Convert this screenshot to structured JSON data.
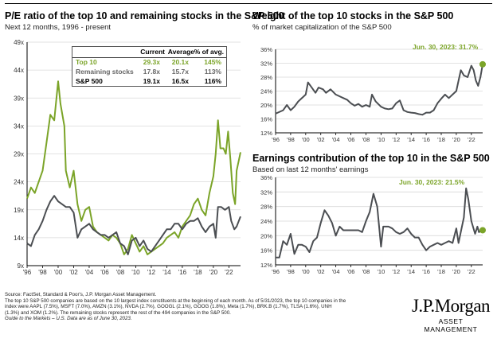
{
  "colors": {
    "top10": "#7ba428",
    "remaining": "#4b4e52",
    "grid": "#d9d9d9",
    "highlight": "#7ba428"
  },
  "left": {
    "title": "P/E ratio of the top 10 and remaining stocks in the S&P 500",
    "subtitle": "Next 12 months, 1996 - present",
    "table": {
      "headers": [
        "Current",
        "Average",
        "% of avg."
      ],
      "rows": [
        {
          "label": "Top 10",
          "current": "29.3x",
          "average": "20.1x",
          "pct": "145%"
        },
        {
          "label": "Remaining stocks",
          "current": "17.8x",
          "average": "15.7x",
          "pct": "113%"
        },
        {
          "label": "S&P 500",
          "current": "19.1x",
          "average": "16.5x",
          "pct": "116%"
        }
      ]
    }
  },
  "top_right": {
    "title": "Weight of the top 10 stocks in the S&P 500",
    "subtitle": "% of market capitalization of the S&P 500",
    "annotation": "Jun. 30, 2023: 31.7%"
  },
  "bottom_right": {
    "title": "Earnings contribution of the top 10 in the S&P 500",
    "subtitle": "Based on last 12 months' earnings",
    "annotation": "Jun. 30, 2023: 21.5%"
  },
  "footer": {
    "source": "Source: FactSet, Standard & Poor's, J.P. Morgan Asset Management.",
    "note": "The top 10 S&P 500 companies are based on the 10 largest index constituents at the beginning of each month. As of 5/31/2023, the top 10 companies in the index were AAPL (7.5%), MSFT (7.0%), AMZN (3.1%), NVDA (2.7%), GOOGL (2.1%), GOOG (1.8%), Meta (1.7%), BRK.B (1.7%), TLSA (1.6%), UNH (1.3%) and XOM (1.2%). The remaining stocks represent the rest of the 494 companies in the S&P 500.",
    "guide": "Guide to the Markets – U.S. Data are as of June 30, 2023."
  },
  "logo": {
    "name": "J.P.Morgan",
    "tagline": "ASSET MANAGEMENT"
  },
  "chart_data": [
    {
      "type": "line",
      "title": "P/E ratio of the top 10 and remaining stocks in the S&P 500",
      "ylim": [
        9,
        49
      ],
      "yticks": [
        "9x",
        "14x",
        "19x",
        "24x",
        "29x",
        "34x",
        "39x",
        "44x",
        "49x"
      ],
      "ytick_values": [
        9,
        14,
        19,
        24,
        29,
        34,
        39,
        44,
        49
      ],
      "xlim": [
        1996,
        2023.5
      ],
      "xticks": [
        "'96",
        "'98",
        "'00",
        "'02",
        "'04",
        "'06",
        "'08",
        "'10",
        "'12",
        "'14",
        "'16",
        "'18",
        "'20",
        "'22"
      ],
      "xtick_values": [
        1996,
        1998,
        2000,
        2002,
        2004,
        2006,
        2008,
        2010,
        2012,
        2014,
        2016,
        2018,
        2020,
        2022
      ],
      "grid": true,
      "series": [
        {
          "name": "Top 10",
          "color": "#7ba428",
          "x": [
            1996,
            1996.5,
            1997,
            1997.5,
            1998,
            1998.5,
            1999,
            1999.5,
            2000,
            2000.3,
            2000.8,
            2001,
            2001.5,
            2002,
            2002.5,
            2003,
            2003.5,
            2004,
            2004.5,
            2005,
            2005.5,
            2006,
            2006.5,
            2007,
            2007.5,
            2008,
            2008.5,
            2009,
            2009.5,
            2010,
            2010.5,
            2011,
            2011.5,
            2012,
            2012.5,
            2013,
            2013.5,
            2014,
            2014.5,
            2015,
            2015.5,
            2016,
            2016.5,
            2017,
            2017.5,
            2018,
            2018.5,
            2019,
            2019.5,
            2020,
            2020.3,
            2020.6,
            2020.9,
            2021.3,
            2021.6,
            2021.9,
            2022.2,
            2022.5,
            2022.8,
            2023,
            2023.5
          ],
          "y": [
            21,
            23,
            22,
            24,
            26,
            31,
            36,
            35,
            42,
            38,
            34,
            26,
            23,
            26,
            20,
            17,
            19,
            19.5,
            16,
            15,
            14.5,
            14,
            13.5,
            14.5,
            14,
            13,
            11,
            12,
            14.5,
            13,
            11.5,
            12.5,
            11,
            11.5,
            12,
            12.5,
            13,
            14,
            14.5,
            15,
            14,
            16,
            17,
            18,
            20,
            21,
            19,
            18,
            22,
            25,
            29,
            35,
            30,
            30,
            29,
            33,
            28,
            22,
            20,
            26,
            29.3
          ]
        },
        {
          "name": "Remaining stocks",
          "color": "#4b4e52",
          "x": [
            1996,
            1996.5,
            1997,
            1997.5,
            1998,
            1998.5,
            1999,
            1999.5,
            2000,
            2000.5,
            2001,
            2001.5,
            2002,
            2002.5,
            2003,
            2003.5,
            2004,
            2004.5,
            2005,
            2005.5,
            2006,
            2006.5,
            2007,
            2007.5,
            2008,
            2008.5,
            2009,
            2009.5,
            2010,
            2010.5,
            2011,
            2011.5,
            2012,
            2012.5,
            2013,
            2013.5,
            2014,
            2014.5,
            2015,
            2015.5,
            2016,
            2016.5,
            2017,
            2017.5,
            2018,
            2018.5,
            2019,
            2019.5,
            2020,
            2020.3,
            2020.6,
            2021,
            2021.5,
            2022,
            2022.3,
            2022.7,
            2023,
            2023.5
          ],
          "y": [
            13,
            12.5,
            14.5,
            15.5,
            17,
            19,
            20.5,
            21.5,
            20.5,
            20,
            19.5,
            19.5,
            18.5,
            14,
            15.5,
            16,
            16.5,
            15.5,
            15,
            14.5,
            14.5,
            14,
            14.5,
            15,
            13,
            12.5,
            11,
            13.5,
            14,
            12.5,
            13.5,
            12,
            11.5,
            12.5,
            13.5,
            14.5,
            15.5,
            15.5,
            16.5,
            16.5,
            15.5,
            16.5,
            17,
            17,
            17.5,
            16,
            15,
            16,
            16.5,
            14,
            19.5,
            19.5,
            19,
            19.5,
            17,
            15.5,
            16,
            17.8
          ]
        }
      ]
    },
    {
      "type": "line",
      "title": "Weight of the top 10 stocks in the S&P 500",
      "ylim": [
        12,
        36
      ],
      "yticks": [
        "12%",
        "16%",
        "20%",
        "24%",
        "28%",
        "32%",
        "36%"
      ],
      "ytick_values": [
        12,
        16,
        20,
        24,
        28,
        32,
        36
      ],
      "xlim": [
        1996,
        2023.5
      ],
      "xticks": [
        "'96",
        "'98",
        "'00",
        "'02",
        "'04",
        "'06",
        "'08",
        "'10",
        "'12",
        "'14",
        "'16",
        "'18",
        "'20",
        "'22"
      ],
      "xtick_values": [
        1996,
        1998,
        2000,
        2002,
        2004,
        2006,
        2008,
        2010,
        2012,
        2014,
        2016,
        2018,
        2020,
        2022
      ],
      "grid": true,
      "series": [
        {
          "color": "#4b4e52",
          "x": [
            1996,
            1997,
            1997.5,
            1998,
            1998.5,
            1999,
            1999.5,
            2000,
            2000.3,
            2000.8,
            2001.3,
            2001.7,
            2002.3,
            2002.7,
            2003.3,
            2004,
            2004.5,
            2005,
            2005.5,
            2006,
            2006.5,
            2007,
            2007.5,
            2008,
            2008.5,
            2008.8,
            2009.3,
            2010,
            2010.5,
            2011,
            2011.5,
            2012,
            2012.5,
            2013,
            2013.5,
            2014,
            2014.5,
            2015,
            2015.5,
            2016,
            2016.5,
            2017,
            2017.5,
            2018,
            2018.5,
            2019,
            2019.5,
            2020,
            2020.3,
            2020.6,
            2021,
            2021.5,
            2022,
            2022.3,
            2022.6,
            2022.9,
            2023.2,
            2023.5
          ],
          "y": [
            17.5,
            18.5,
            20,
            18.5,
            19.5,
            21,
            22,
            23,
            26.5,
            25,
            23.5,
            25,
            24.5,
            23.5,
            24.5,
            23,
            22.5,
            22,
            21.5,
            20.5,
            19.8,
            20.3,
            19.5,
            20,
            19.5,
            23,
            21,
            19.5,
            19,
            18.8,
            19,
            20.5,
            21.3,
            18.5,
            18,
            17.8,
            17.7,
            17.4,
            17.2,
            17.8,
            17.8,
            18.5,
            20.5,
            21.8,
            23,
            22,
            23,
            24,
            27,
            30,
            28.5,
            28,
            31.3,
            30,
            27,
            25.5,
            28,
            31.7
          ]
        }
      ]
    },
    {
      "type": "line",
      "title": "Earnings contribution of the top 10 in the S&P 500",
      "ylim": [
        12,
        36
      ],
      "yticks": [
        "12%",
        "16%",
        "20%",
        "24%",
        "28%",
        "32%",
        "36%"
      ],
      "ytick_values": [
        12,
        16,
        20,
        24,
        28,
        32,
        36
      ],
      "xlim": [
        1996,
        2023.5
      ],
      "xticks": [
        "'96",
        "'98",
        "'00",
        "'02",
        "'04",
        "'06",
        "'08",
        "'10",
        "'12",
        "'14",
        "'16",
        "'18",
        "'20",
        "'22"
      ],
      "xtick_values": [
        1996,
        1998,
        2000,
        2002,
        2004,
        2006,
        2008,
        2010,
        2012,
        2014,
        2016,
        2018,
        2020,
        2022
      ],
      "grid": true,
      "series": [
        {
          "color": "#4b4e52",
          "x": [
            1996,
            1996.5,
            1997,
            1997.5,
            1998,
            1998.5,
            1999,
            1999.5,
            2000,
            2000.5,
            2001,
            2001.5,
            2002,
            2002.5,
            2003,
            2003.5,
            2004,
            2004.5,
            2005,
            2006,
            2007,
            2007.5,
            2008,
            2008.5,
            2009,
            2009.5,
            2010,
            2010.3,
            2011,
            2011.5,
            2012,
            2012.5,
            2013,
            2013.5,
            2014,
            2014.5,
            2015,
            2015.5,
            2016,
            2016.5,
            2017,
            2017.5,
            2018,
            2018.5,
            2019,
            2019.5,
            2020,
            2020.3,
            2020.7,
            2021,
            2021.3,
            2021.6,
            2022,
            2022.5,
            2022.8,
            2023,
            2023.5
          ],
          "y": [
            14,
            14,
            18.5,
            17.5,
            20.5,
            15,
            17.5,
            17.5,
            17,
            15.5,
            18.5,
            19.5,
            23.5,
            27,
            25.5,
            23.5,
            20,
            22.5,
            21.5,
            21.5,
            21.5,
            21,
            24,
            26.5,
            31.5,
            28,
            17,
            22.5,
            22.5,
            22,
            21,
            20.5,
            21,
            22,
            20.5,
            19.5,
            19.5,
            17.5,
            16,
            17,
            17.5,
            18,
            17.5,
            18,
            18.5,
            18,
            22,
            18,
            22,
            25,
            33,
            30,
            24,
            20.5,
            22.5,
            21,
            21.5
          ]
        }
      ]
    }
  ]
}
